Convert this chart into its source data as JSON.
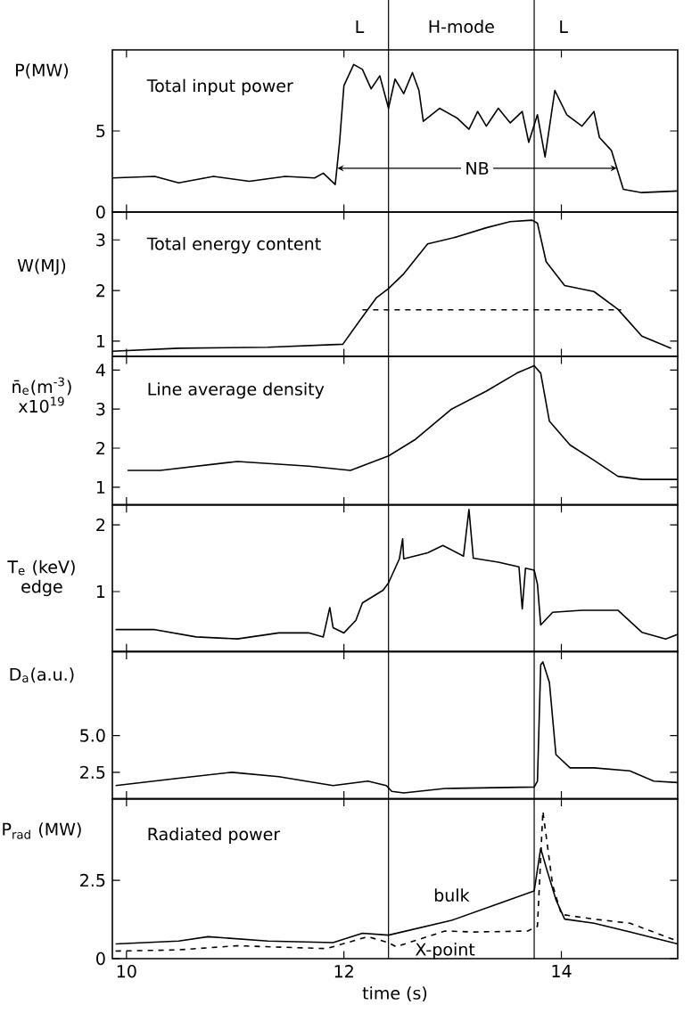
{
  "chart_data": [
    {
      "type": "line",
      "title": "Total input power",
      "ylabel": "P(MW)",
      "xlim": [
        9.87,
        15.07
      ],
      "ylim": [
        0,
        10
      ],
      "xticks": [
        10,
        12,
        14
      ],
      "yticks": [
        0,
        5
      ],
      "tick_labels": "y",
      "ref_lines": [
        {
          "axis": "x",
          "value": 12.41
        },
        {
          "axis": "x",
          "value": 13.75
        }
      ],
      "annotations": [
        "L",
        "H-mode",
        "L",
        {
          "text": "NB",
          "x": 11.94,
          "y": 2.7
        }
      ],
      "series": [
        {
          "color": "#000000",
          "line_style": "solid",
          "x": [
            9.87,
            10.26,
            10.48,
            10.8,
            11.13,
            11.46,
            11.73,
            11.81,
            11.92,
            11.96,
            12.0,
            12.09,
            12.17,
            12.25,
            12.33,
            12.41,
            12.47,
            12.55,
            12.63,
            12.69,
            12.73,
            12.88,
            13.04,
            13.15,
            13.23,
            13.31,
            13.42,
            13.53,
            13.64,
            13.7,
            13.78,
            13.85,
            13.94,
            14.05,
            14.19,
            14.3,
            14.35,
            14.46,
            14.57,
            14.74,
            15.07
          ],
          "values": [
            2.1,
            2.2,
            1.8,
            2.2,
            1.9,
            2.2,
            2.1,
            2.4,
            1.7,
            4.3,
            7.8,
            9.1,
            8.8,
            7.6,
            8.4,
            6.4,
            8.2,
            7.3,
            8.6,
            7.5,
            5.6,
            6.4,
            5.8,
            5.1,
            6.2,
            5.3,
            6.4,
            5.5,
            6.2,
            4.3,
            6.0,
            3.4,
            7.5,
            6.0,
            5.3,
            6.2,
            4.6,
            3.8,
            1.4,
            1.2,
            1.3
          ]
        }
      ]
    },
    {
      "type": "line",
      "title": "Total energy content",
      "ylabel": "W(MJ)",
      "xlim": [
        9.87,
        15.07
      ],
      "ylim": [
        0.7,
        3.55
      ],
      "xticks": [
        10,
        12,
        14
      ],
      "yticks": [
        1,
        2,
        3
      ],
      "tick_labels": "y",
      "ref_lines": [
        {
          "axis": "x",
          "value": 12.41
        },
        {
          "axis": "x",
          "value": 13.75
        }
      ],
      "series": [
        {
          "color": "#000000",
          "line_style": "solid",
          "x": [
            9.87,
            10.48,
            11.3,
            11.99,
            12.14,
            12.3,
            12.41,
            12.55,
            12.77,
            13.04,
            13.31,
            13.53,
            13.73,
            13.78,
            13.86,
            14.03,
            14.3,
            14.52,
            14.74,
            15.01
          ],
          "values": [
            0.8,
            0.86,
            0.88,
            0.94,
            1.39,
            1.86,
            2.04,
            2.33,
            2.92,
            3.06,
            3.24,
            3.36,
            3.39,
            3.33,
            2.57,
            2.1,
            1.98,
            1.63,
            1.1,
            0.86
          ]
        },
        {
          "color": "#000000",
          "line_style": "dashed",
          "x": [
            12.17,
            14.55
          ],
          "values": [
            1.62,
            1.62
          ]
        }
      ]
    },
    {
      "type": "line",
      "title": "Line average density",
      "ylabel": "n̄$_{e}$(m$^{-3}$) x10$^{19}$",
      "xlim": [
        9.87,
        15.07
      ],
      "ylim": [
        0.55,
        4.35
      ],
      "xticks": [
        10,
        12,
        14
      ],
      "yticks": [
        1,
        2,
        3,
        4
      ],
      "tick_labels": "y",
      "ref_lines": [
        {
          "axis": "x",
          "value": 12.41
        },
        {
          "axis": "x",
          "value": 13.75
        }
      ],
      "series": [
        {
          "color": "#000000",
          "line_style": "solid",
          "x": [
            10.01,
            10.31,
            11.02,
            11.68,
            12.06,
            12.2,
            12.41,
            12.66,
            12.99,
            13.31,
            13.59,
            13.75,
            13.81,
            13.89,
            14.08,
            14.3,
            14.52,
            14.74,
            15.07
          ],
          "values": [
            1.43,
            1.43,
            1.66,
            1.54,
            1.43,
            1.58,
            1.8,
            2.23,
            3.0,
            3.46,
            3.92,
            4.11,
            3.92,
            2.69,
            2.08,
            1.69,
            1.28,
            1.2,
            1.2
          ]
        }
      ]
    },
    {
      "type": "line",
      "ylabel": "T$_{e}$ (keV) edge",
      "xlim": [
        9.87,
        15.07
      ],
      "ylim": [
        0.1,
        2.3
      ],
      "xticks": [
        10,
        12,
        14
      ],
      "yticks": [
        1,
        2
      ],
      "tick_labels": "y",
      "ref_lines": [
        {
          "axis": "x",
          "value": 12.41
        },
        {
          "axis": "x",
          "value": 13.75
        }
      ],
      "series": [
        {
          "color": "#000000",
          "line_style": "solid",
          "x": [
            9.9,
            10.26,
            10.64,
            11.02,
            11.4,
            11.68,
            11.81,
            11.87,
            11.9,
            12.0,
            12.11,
            12.17,
            12.36,
            12.41,
            12.51,
            12.54,
            12.55,
            12.77,
            12.91,
            13.1,
            13.15,
            13.19,
            13.42,
            13.61,
            13.64,
            13.67,
            13.75,
            13.78,
            13.81,
            13.92,
            14.19,
            14.52,
            14.74,
            14.96,
            15.07
          ],
          "values": [
            0.43,
            0.43,
            0.32,
            0.29,
            0.38,
            0.38,
            0.32,
            0.76,
            0.46,
            0.38,
            0.57,
            0.83,
            1.02,
            1.13,
            1.49,
            1.79,
            1.49,
            1.58,
            1.69,
            1.53,
            2.23,
            1.5,
            1.44,
            1.37,
            0.74,
            1.35,
            1.32,
            1.11,
            0.5,
            0.69,
            0.72,
            0.72,
            0.39,
            0.29,
            0.36
          ]
        }
      ]
    },
    {
      "type": "line",
      "ylabel": "D$_{a}$(a.u.)",
      "xlim": [
        9.87,
        15.07
      ],
      "ylim": [
        0.7,
        10.7
      ],
      "xticks": [
        10,
        12,
        14
      ],
      "yticks": [
        2.5,
        {
          "value": 5,
          "label": "5.0"
        }
      ],
      "tick_labels": "y",
      "ref_lines": [
        {
          "axis": "x",
          "value": 12.41
        },
        {
          "axis": "x",
          "value": 13.75
        }
      ],
      "series": [
        {
          "color": "#000000",
          "line_style": "solid",
          "x": [
            9.9,
            10.48,
            10.97,
            11.4,
            11.9,
            12.22,
            12.39,
            12.44,
            12.55,
            12.93,
            13.75,
            13.78,
            13.81,
            13.83,
            13.89,
            13.95,
            14.08,
            14.3,
            14.63,
            14.85,
            15.07
          ],
          "values": [
            1.6,
            2.1,
            2.5,
            2.2,
            1.6,
            1.9,
            1.6,
            1.2,
            1.1,
            1.4,
            1.5,
            1.9,
            9.8,
            10.0,
            8.6,
            3.7,
            2.8,
            2.8,
            2.6,
            1.9,
            1.8
          ]
        }
      ]
    },
    {
      "type": "line",
      "title": "Radiated power",
      "ylabel": "P$_{rad}$ (MW)",
      "xlabel": "time (s)",
      "xlim": [
        9.87,
        15.07
      ],
      "ylim": [
        0,
        5.1
      ],
      "xticks": [
        10,
        12,
        14
      ],
      "yticks": [
        0,
        2.5
      ],
      "ref_lines": [
        {
          "axis": "x",
          "value": 12.41
        },
        {
          "axis": "x",
          "value": 13.75
        }
      ],
      "series": [
        {
          "name": "bulk",
          "color": "#000000",
          "line_style": "solid",
          "x": [
            9.9,
            10.48,
            10.75,
            11.3,
            11.9,
            12.17,
            12.41,
            12.99,
            13.75,
            13.81,
            13.86,
            13.95,
            14.03,
            14.3,
            14.63,
            15.07
          ],
          "values": [
            0.47,
            0.56,
            0.7,
            0.56,
            0.51,
            0.81,
            0.75,
            1.22,
            2.16,
            3.52,
            2.91,
            1.88,
            1.26,
            1.13,
            0.85,
            0.47
          ]
        },
        {
          "name": "X-point",
          "color": "#000000",
          "line_style": "dashed",
          "x": [
            9.9,
            10.48,
            11.02,
            11.84,
            12.22,
            12.41,
            12.48,
            12.93,
            13.2,
            13.69,
            13.78,
            13.83,
            13.92,
            14.0,
            14.3,
            14.63,
            15.07
          ],
          "values": [
            0.24,
            0.28,
            0.41,
            0.32,
            0.7,
            0.51,
            0.38,
            0.88,
            0.85,
            0.88,
            1.03,
            4.7,
            2.35,
            1.41,
            1.26,
            1.13,
            0.56
          ]
        }
      ]
    }
  ]
}
